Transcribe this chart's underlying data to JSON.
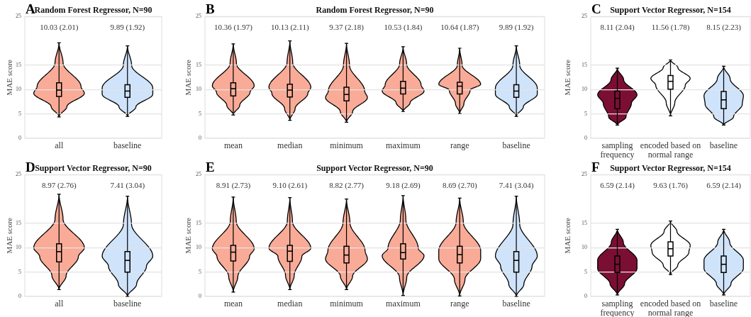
{
  "chart_data": [
    {
      "type": "box",
      "title": "Random Forest Regressor, N=90",
      "ylabel": "MAE score",
      "categories": [
        "all",
        "baseline"
      ],
      "boxes": [
        {
          "low": 4.4,
          "q1": 8.6,
          "median": 9.9,
          "q3": 11.4,
          "high": 19.6
        },
        {
          "low": 4.5,
          "q1": 8.4,
          "median": 9.7,
          "q3": 11.0,
          "high": 19.0
        }
      ],
      "colors": [
        "#f9ab97",
        "#cfe3fa"
      ],
      "ylim": [
        0,
        25
      ],
      "yticks": [
        0,
        5,
        10,
        15,
        25
      ],
      "grid": "y",
      "annotations": [
        "A",
        "10.03 (2.01)",
        "9.89 (1.92)"
      ]
    },
    {
      "type": "box",
      "title": "Random Forest Regressor, N=90",
      "ylabel": "MAE score",
      "categories": [
        "mean",
        "median",
        "minimum",
        "maximum",
        "range",
        "baseline"
      ],
      "boxes": [
        {
          "low": 4.8,
          "q1": 8.7,
          "median": 10.2,
          "q3": 11.4,
          "high": 19.4
        },
        {
          "low": 3.7,
          "q1": 8.5,
          "median": 9.9,
          "q3": 11.1,
          "high": 20.0
        },
        {
          "low": 3.3,
          "q1": 7.7,
          "median": 9.0,
          "q3": 10.5,
          "high": 19.5
        },
        {
          "low": 5.5,
          "q1": 9.1,
          "median": 10.3,
          "q3": 11.7,
          "high": 18.8
        },
        {
          "low": 5.1,
          "q1": 9.1,
          "median": 10.7,
          "q3": 11.5,
          "high": 18.5
        },
        {
          "low": 4.5,
          "q1": 8.4,
          "median": 9.7,
          "q3": 11.0,
          "high": 19.0
        }
      ],
      "colors": [
        "#f9ab97",
        "#f9ab97",
        "#f9ab97",
        "#f9ab97",
        "#f9ab97",
        "#cfe3fa"
      ],
      "ylim": [
        0,
        25
      ],
      "yticks": [
        0,
        5,
        10,
        15,
        25
      ],
      "grid": "y",
      "annotations": [
        "B",
        "10.36 (1.97)",
        "10.13 (2.11)",
        "9.37 (2.18)",
        "10.53 (1.84)",
        "10.64 (1.87)",
        "9.89 (1.92)"
      ]
    },
    {
      "type": "box",
      "title": "Support Vector Regressor, N=154",
      "ylabel": "MAE score",
      "categories": [
        "sampling\nfrequency",
        "encoded based on\nnormal range",
        "baseline"
      ],
      "boxes": [
        {
          "low": 2.7,
          "q1": 6.1,
          "median": 8.2,
          "q3": 9.7,
          "high": 14.4
        },
        {
          "low": 4.6,
          "q1": 10.1,
          "median": 11.7,
          "q3": 12.9,
          "high": 16.1
        },
        {
          "low": 2.7,
          "q1": 6.1,
          "median": 7.9,
          "q3": 9.6,
          "high": 14.8
        }
      ],
      "colors": [
        "#7b0f33",
        "#ffffff",
        "#cfe3fa"
      ],
      "ylim": [
        0,
        25
      ],
      "yticks": [
        0,
        5,
        10,
        15,
        25
      ],
      "grid": "y",
      "annotations": [
        "C",
        "8.11 (2.04)",
        "11.56 (1.78)",
        "8.15 (2.23)"
      ]
    },
    {
      "type": "box",
      "title": "Support Vector Regressor, N=90",
      "ylabel": "MAE score",
      "categories": [
        "all",
        "baseline"
      ],
      "boxes": [
        {
          "low": 1.4,
          "q1": 7.1,
          "median": 9.2,
          "q3": 10.8,
          "high": 21.0
        },
        {
          "low": 0,
          "q1": 5.0,
          "median": 7.4,
          "q3": 9.2,
          "high": 20.6
        }
      ],
      "colors": [
        "#f9ab97",
        "#cfe3fa"
      ],
      "ylim": [
        0,
        25
      ],
      "yticks": [
        0,
        5,
        10,
        15,
        25
      ],
      "grid": "y",
      "annotations": [
        "D",
        "8.97 (2.76)",
        "7.41 (3.04)"
      ]
    },
    {
      "type": "box",
      "title": "Support Vector Regressor, N=90",
      "ylabel": "MAE score",
      "categories": [
        "mean",
        "median",
        "minimum",
        "maximum",
        "range",
        "baseline"
      ],
      "boxes": [
        {
          "low": 0.9,
          "q1": 7.3,
          "median": 9.1,
          "q3": 10.5,
          "high": 20.4
        },
        {
          "low": 1.4,
          "q1": 7.2,
          "median": 9.3,
          "q3": 10.5,
          "high": 20.3
        },
        {
          "low": 1.4,
          "q1": 6.9,
          "median": 8.5,
          "q3": 10.3,
          "high": 20.0
        },
        {
          "low": 0.2,
          "q1": 7.7,
          "median": 9.0,
          "q3": 10.8,
          "high": 20.7
        },
        {
          "low": 0.1,
          "q1": 6.9,
          "median": 8.6,
          "q3": 10.3,
          "high": 20.2
        },
        {
          "low": 0,
          "q1": 5.0,
          "median": 7.4,
          "q3": 9.2,
          "high": 20.6
        }
      ],
      "colors": [
        "#f9ab97",
        "#f9ab97",
        "#f9ab97",
        "#f9ab97",
        "#f9ab97",
        "#cfe3fa"
      ],
      "ylim": [
        0,
        25
      ],
      "yticks": [
        0,
        5,
        10,
        15,
        25
      ],
      "grid": "y",
      "annotations": [
        "E",
        "8.91 (2.73)",
        "9.10 (2.61)",
        "8.82 (2.77)",
        "9.18 (2.69)",
        "8.69 (2.70)",
        "7.41 (3.04)"
      ]
    },
    {
      "type": "box",
      "title": "Support Vector Regressor, N=154",
      "ylabel": "MAE score",
      "categories": [
        "sampling\nfrequency",
        "encoded based on\nnormal range",
        "baseline"
      ],
      "boxes": [
        {
          "low": 0.3,
          "q1": 4.9,
          "median": 6.6,
          "q3": 8.3,
          "high": 13.8
        },
        {
          "low": 4.5,
          "q1": 8.3,
          "median": 9.8,
          "q3": 11.2,
          "high": 15.5
        },
        {
          "low": 0.3,
          "q1": 4.9,
          "median": 6.6,
          "q3": 8.3,
          "high": 13.8
        }
      ],
      "colors": [
        "#7b0f33",
        "#ffffff",
        "#cfe3fa"
      ],
      "ylim": [
        0,
        25
      ],
      "yticks": [
        0,
        5,
        10,
        15,
        25
      ],
      "grid": "y",
      "annotations": [
        "F",
        "6.59 (2.14)",
        "9.63 (1.76)",
        "6.59 (2.14)"
      ]
    }
  ]
}
